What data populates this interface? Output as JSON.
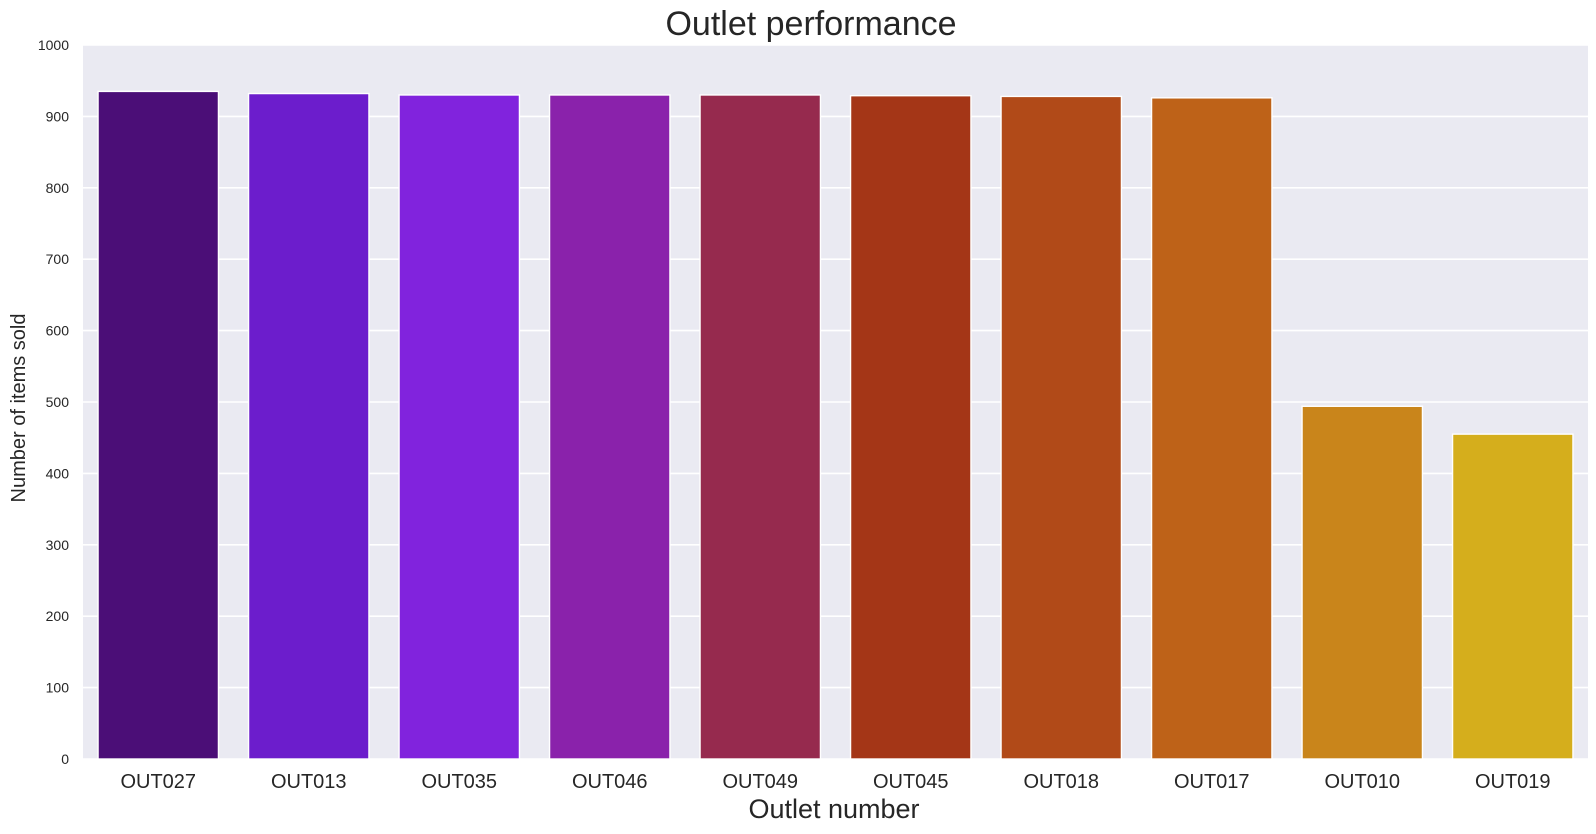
{
  "chart_data": {
    "type": "bar",
    "title": "Outlet performance",
    "xlabel": "Outlet number",
    "ylabel": "Number of items sold",
    "categories": [
      "OUT027",
      "OUT013",
      "OUT035",
      "OUT046",
      "OUT049",
      "OUT045",
      "OUT018",
      "OUT017",
      "OUT010",
      "OUT019"
    ],
    "values": [
      935,
      932,
      930,
      930,
      930,
      929,
      928,
      926,
      494,
      455
    ],
    "colors": [
      "#4b0e77",
      "#6c1dcc",
      "#8123dd",
      "#8a22ab",
      "#962a4e",
      "#a43617",
      "#b14a18",
      "#be6218",
      "#c9851b",
      "#d5ae1c"
    ],
    "ylim": [
      0,
      1000
    ],
    "yticks": [
      0,
      100,
      200,
      300,
      400,
      500,
      600,
      700,
      800,
      900,
      1000
    ],
    "grid": true,
    "plot_background": "#eaeaf2",
    "legend": "none"
  }
}
